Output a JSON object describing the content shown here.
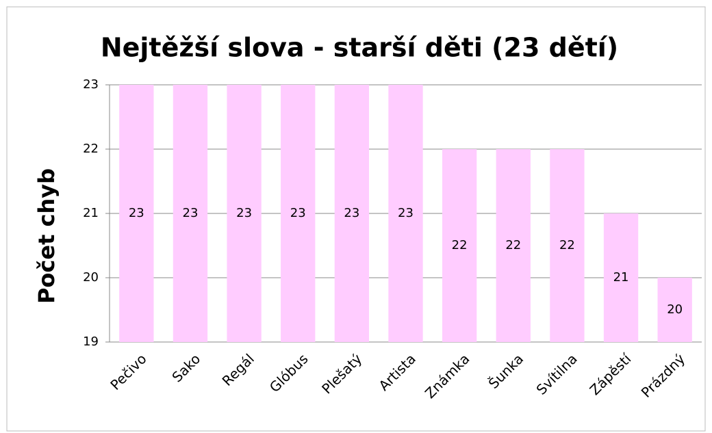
{
  "chart_data": {
    "type": "bar",
    "title": "Nejtěžší slova - starší děti (23 dětí)",
    "y_label": "Počet chyb",
    "categories": [
      "Pečivo",
      "Sako",
      "Regál",
      "Glóbus",
      "Plešatý",
      "Artista",
      "Známka",
      "Šunka",
      "Svítilna",
      "Zápěstí",
      "Prázdný"
    ],
    "values": [
      23,
      23,
      23,
      23,
      23,
      23,
      22,
      22,
      22,
      21,
      20
    ],
    "color": "#ffccff",
    "ylim": [
      19,
      23
    ],
    "yticks": [
      19,
      20,
      21,
      22,
      23
    ],
    "grid": true
  }
}
